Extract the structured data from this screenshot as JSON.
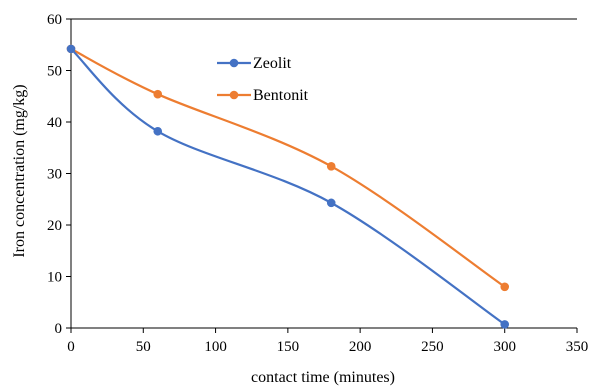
{
  "chart_data": {
    "type": "line",
    "title": "",
    "xlabel": "contact time (minutes)",
    "ylabel": "Iron concentration (mg/kg)",
    "xlim": [
      0,
      350
    ],
    "ylim": [
      0,
      60
    ],
    "xticks": [
      0,
      50,
      100,
      150,
      200,
      250,
      300,
      350
    ],
    "yticks": [
      0,
      10,
      20,
      30,
      40,
      50,
      60
    ],
    "grid": false,
    "smooth": true,
    "legend_position": "top-center",
    "series": [
      {
        "name": "Zeolit",
        "color": "#4472C4",
        "x": [
          0,
          60,
          180,
          300
        ],
        "y": [
          54.2,
          38.2,
          24.3,
          0.7
        ]
      },
      {
        "name": "Bentonit",
        "color": "#ED7D31",
        "x": [
          0,
          60,
          180,
          300
        ],
        "y": [
          54.2,
          45.4,
          31.4,
          8.0
        ]
      }
    ]
  }
}
